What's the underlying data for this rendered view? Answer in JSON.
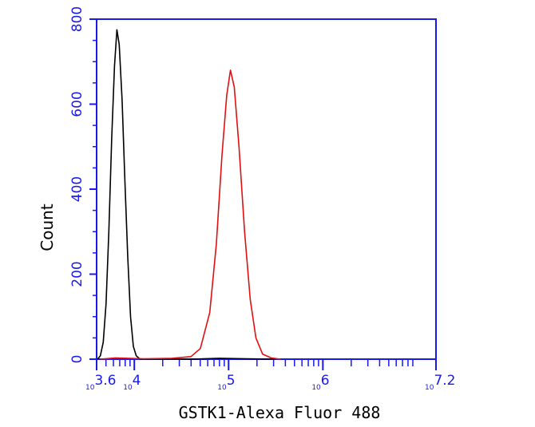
{
  "chart_data": {
    "type": "line",
    "title": "",
    "xlabel": "GSTK1-Alexa Fluor 488",
    "ylabel": "Count",
    "x_scale": "log10",
    "xlim": [
      3.6,
      7.2
    ],
    "ylim": [
      0,
      800
    ],
    "y_ticks": [
      "0",
      "200",
      "400",
      "600",
      "800"
    ],
    "x_ticks": [
      {
        "value": 3.6,
        "base": "10",
        "exp": "3.6"
      },
      {
        "value": 4,
        "base": "10",
        "exp": "4"
      },
      {
        "value": 5,
        "base": "10",
        "exp": "5"
      },
      {
        "value": 6,
        "base": "10",
        "exp": "6"
      },
      {
        "value": 7.2,
        "base": "10",
        "exp": "7.2"
      }
    ],
    "grid": false,
    "axis_color": "#1a1ae6",
    "series": [
      {
        "color": "#000000",
        "points": [
          [
            3.61,
            0
          ],
          [
            3.64,
            8
          ],
          [
            3.67,
            40
          ],
          [
            3.7,
            130
          ],
          [
            3.73,
            300
          ],
          [
            3.76,
            520
          ],
          [
            3.79,
            690
          ],
          [
            3.815,
            775
          ],
          [
            3.84,
            740
          ],
          [
            3.87,
            610
          ],
          [
            3.9,
            420
          ],
          [
            3.93,
            240
          ],
          [
            3.96,
            100
          ],
          [
            3.99,
            30
          ],
          [
            4.02,
            8
          ],
          [
            4.06,
            0
          ],
          [
            4.6,
            0
          ],
          [
            4.9,
            2
          ],
          [
            5.2,
            1
          ],
          [
            5.5,
            0
          ]
        ]
      },
      {
        "color": "#e01010",
        "points": [
          [
            3.64,
            0
          ],
          [
            3.8,
            3
          ],
          [
            4.1,
            1
          ],
          [
            4.4,
            2
          ],
          [
            4.6,
            6
          ],
          [
            4.7,
            25
          ],
          [
            4.8,
            110
          ],
          [
            4.87,
            270
          ],
          [
            4.93,
            480
          ],
          [
            4.98,
            620
          ],
          [
            5.02,
            680
          ],
          [
            5.06,
            640
          ],
          [
            5.11,
            500
          ],
          [
            5.17,
            300
          ],
          [
            5.23,
            140
          ],
          [
            5.29,
            50
          ],
          [
            5.36,
            12
          ],
          [
            5.45,
            3
          ],
          [
            5.55,
            0
          ]
        ]
      }
    ]
  }
}
